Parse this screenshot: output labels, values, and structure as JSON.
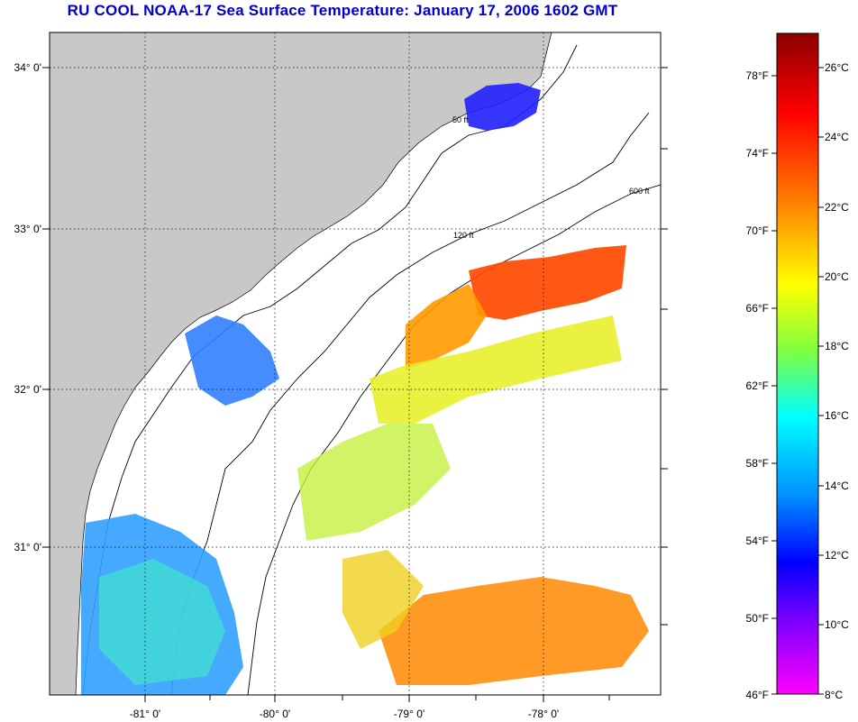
{
  "title": "RU COOL  NOAA-17  Sea Surface Temperature:  January 17, 2006 1602 GMT",
  "map": {
    "lat_labels": [
      "34° 0'",
      "33° 0'",
      "32° 0'",
      "31° 0'"
    ],
    "lon_labels": [
      "-81° 0'",
      "-80° 0'",
      "-79° 0'",
      "-78° 0'"
    ],
    "contour_labels": [
      "50 ft",
      "120 ft",
      "600 ft"
    ],
    "colors": {
      "land": "#c8c8c8",
      "cloud": "#ffffff",
      "border": "#000000"
    }
  },
  "colorbar": {
    "fahrenheit_labels": [
      "78°F",
      "74°F",
      "70°F",
      "66°F",
      "62°F",
      "58°F",
      "54°F",
      "50°F",
      "46°F"
    ],
    "celsius_labels": [
      "26°C",
      "24°C",
      "22°C",
      "20°C",
      "18°C",
      "16°C",
      "14°C",
      "12°C",
      "10°C",
      "8°C"
    ],
    "gradient_colors": [
      "#8b0000",
      "#ff0000",
      "#ff8000",
      "#ffff00",
      "#80ff40",
      "#00ffff",
      "#0080ff",
      "#0000ff",
      "#8000ff",
      "#ff00ff"
    ]
  }
}
